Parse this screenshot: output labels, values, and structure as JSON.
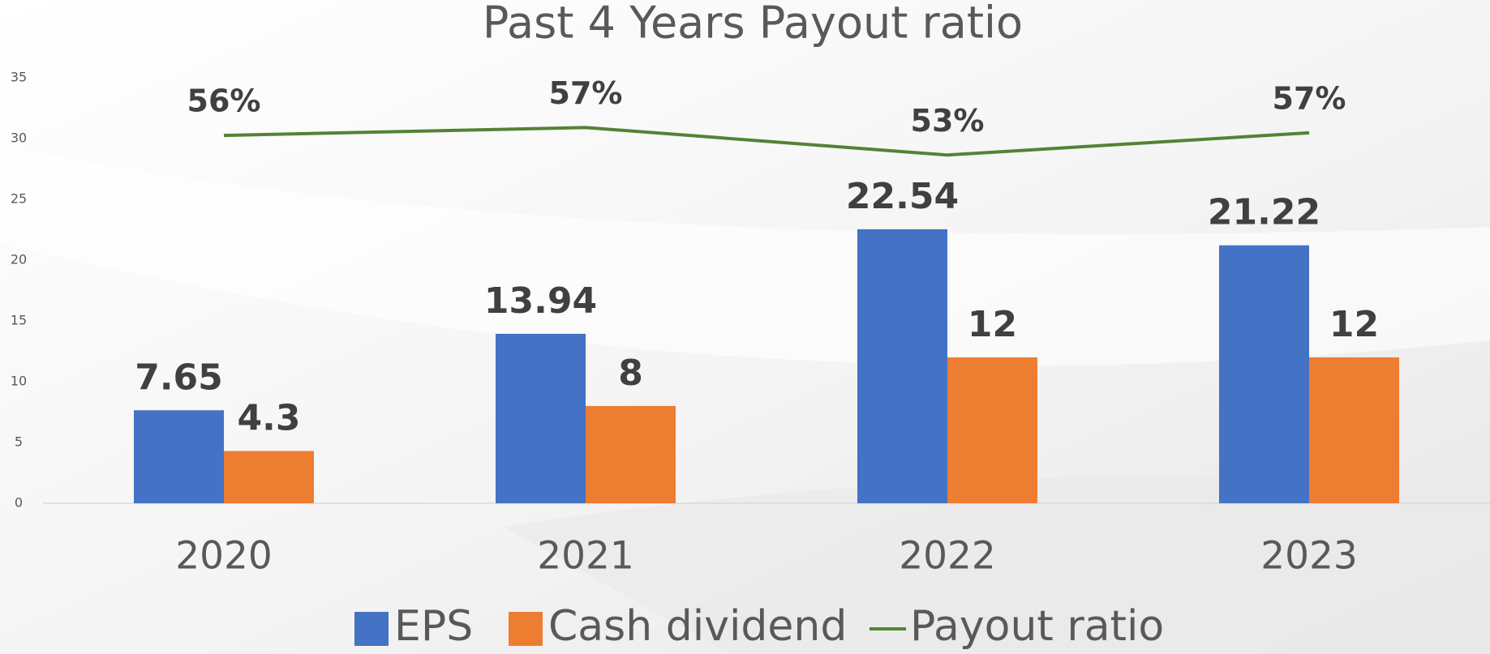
{
  "chart_data": {
    "type": "bar",
    "title": "Past 4 Years Payout ratio",
    "categories": [
      "2020",
      "2021",
      "2022",
      "2023"
    ],
    "series": [
      {
        "name": "EPS",
        "color": "#4472c4",
        "values": [
          7.65,
          13.94,
          22.54,
          21.22
        ]
      },
      {
        "name": "Cash dividend",
        "color": "#ed7d31",
        "values": [
          4.3,
          8,
          12,
          12
        ]
      },
      {
        "name": "Payout ratio",
        "type": "line",
        "axis": "y2",
        "color": "#548235",
        "values": [
          56.2,
          57.4,
          53.2,
          56.6
        ],
        "value_labels": [
          "56%",
          "57%",
          "53%",
          "57%"
        ]
      }
    ],
    "ylim": [
      0,
      35
    ],
    "yticks": [
      0,
      5,
      10,
      15,
      20,
      25,
      30,
      35
    ],
    "y2lim": [
      0,
      65
    ],
    "grid": false,
    "legend": "bottom"
  }
}
